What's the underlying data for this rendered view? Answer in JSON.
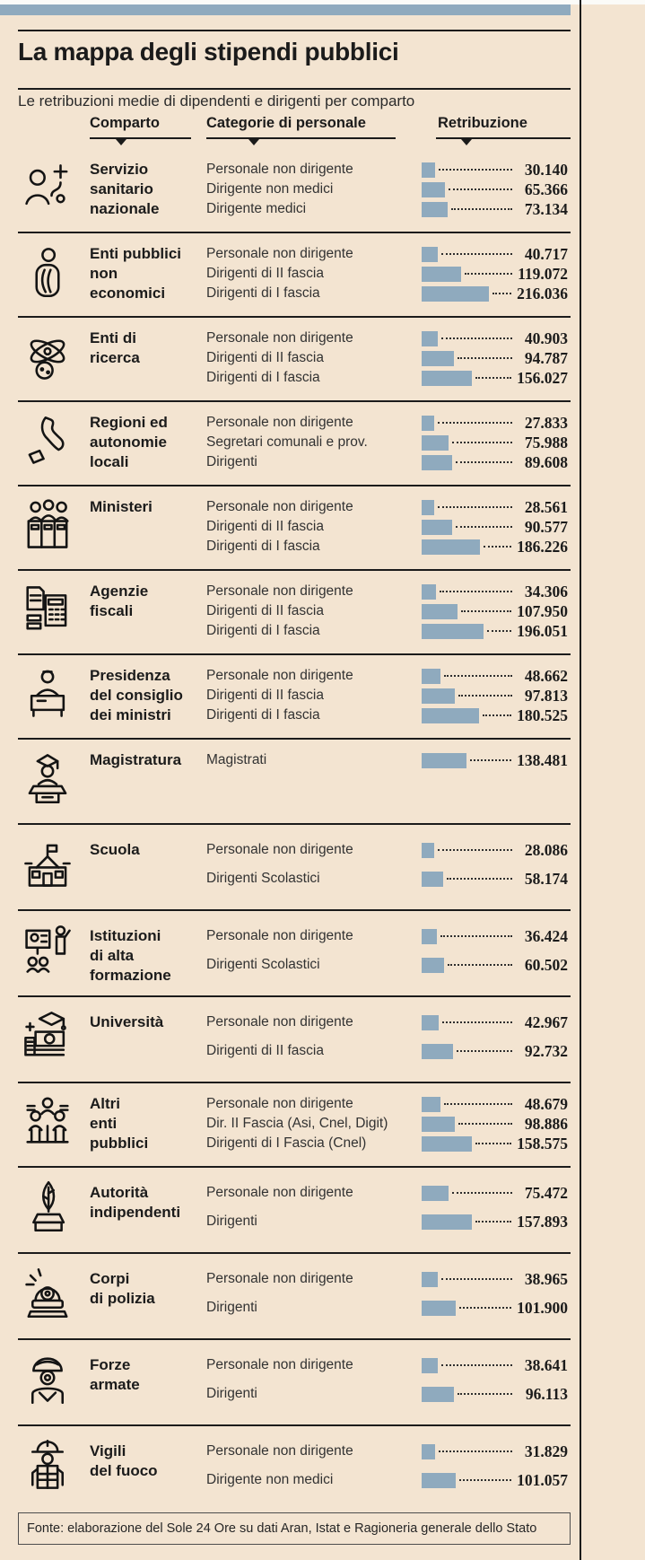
{
  "header": {
    "title": "La mappa degli stipendi pubblici",
    "subtitle": "Le retribuzioni medie di dipendenti e dirigenti per comparto"
  },
  "columns": {
    "comparto": "Comparto",
    "categorie": "Categorie di personale",
    "retribuzione": "Retribuzione"
  },
  "footer": {
    "source": "Fonte: elaborazione del Sole 24 Ore su dati Aran, Istat e Ragioneria generale dello Stato"
  },
  "colors": {
    "background": "#f3e4d1",
    "bar": "#8faabe",
    "top_accent": "#8faabe",
    "text": "#1b1b1b"
  },
  "chart_data": {
    "type": "bar",
    "title": "La mappa degli stipendi pubblici",
    "subtitle": "Le retribuzioni medie di dipendenti e dirigenti per comparto",
    "orientation": "horizontal",
    "xlim": [
      0,
      216036
    ],
    "value_note": "retribuzione media annua in euro, separatore migliaia con punto",
    "rows": [
      {
        "icon": "doctor-icon",
        "comparto": "Servizio sanitario nazionale",
        "comparto_lines": [
          "Servizio",
          "sanitario",
          "nazionale"
        ],
        "items": [
          {
            "label": "Personale non dirigente",
            "value": 30140,
            "display": "30.140"
          },
          {
            "label": "Dirigente non medici",
            "value": 65366,
            "display": "65.366"
          },
          {
            "label": "Dirigente medici",
            "value": 73134,
            "display": "73.134"
          }
        ]
      },
      {
        "icon": "person-robe-icon",
        "comparto": "Enti pubblici non economici",
        "comparto_lines": [
          "Enti pubblici",
          "non",
          "economici"
        ],
        "items": [
          {
            "label": "Personale non dirigente",
            "value": 40717,
            "display": "40.717"
          },
          {
            "label": "Dirigenti di II fascia",
            "value": 119072,
            "display": "119.072"
          },
          {
            "label": "Dirigenti di I fascia",
            "value": 216036,
            "display": "216.036"
          }
        ]
      },
      {
        "icon": "atom-icon",
        "comparto": "Enti di ricerca",
        "comparto_lines": [
          "Enti di",
          "ricerca"
        ],
        "items": [
          {
            "label": "Personale non dirigente",
            "value": 40903,
            "display": "40.903"
          },
          {
            "label": "Dirigenti di II fascia",
            "value": 94787,
            "display": "94.787"
          },
          {
            "label": "Dirigenti di I fascia",
            "value": 156027,
            "display": "156.027"
          }
        ]
      },
      {
        "icon": "italy-map-icon",
        "comparto": "Regioni ed autonomie locali",
        "comparto_lines": [
          "Regioni ed",
          "autonomie",
          "locali"
        ],
        "items": [
          {
            "label": "Personale non dirigente",
            "value": 27833,
            "display": "27.833"
          },
          {
            "label": "Segretari comunali e prov.",
            "value": 75988,
            "display": "75.988"
          },
          {
            "label": "Dirigenti",
            "value": 89608,
            "display": "89.608"
          }
        ]
      },
      {
        "icon": "ministers-icon",
        "comparto": "Ministeri",
        "comparto_lines": [
          "Ministeri"
        ],
        "items": [
          {
            "label": "Personale non dirigente",
            "value": 28561,
            "display": "28.561"
          },
          {
            "label": "Dirigenti di II fascia",
            "value": 90577,
            "display": "90.577"
          },
          {
            "label": "Dirigenti di I fascia",
            "value": 186226,
            "display": "186.226"
          }
        ]
      },
      {
        "icon": "documents-calculator-icon",
        "comparto": "Agenzie fiscali",
        "comparto_lines": [
          "Agenzie",
          "fiscali"
        ],
        "items": [
          {
            "label": "Personale non dirigente",
            "value": 34306,
            "display": "34.306"
          },
          {
            "label": "Dirigenti di II fascia",
            "value": 107950,
            "display": "107.950"
          },
          {
            "label": "Dirigenti di I fascia",
            "value": 196051,
            "display": "196.051"
          }
        ]
      },
      {
        "icon": "official-desk-icon",
        "comparto": "Presidenza del consiglio dei ministri",
        "comparto_lines": [
          "Presidenza",
          "del consiglio",
          "dei ministri"
        ],
        "items": [
          {
            "label": "Personale non dirigente",
            "value": 48662,
            "display": "48.662"
          },
          {
            "label": "Dirigenti di II fascia",
            "value": 97813,
            "display": "97.813"
          },
          {
            "label": "Dirigenti di I fascia",
            "value": 180525,
            "display": "180.525"
          }
        ]
      },
      {
        "icon": "judge-icon",
        "comparto": "Magistratura",
        "comparto_lines": [
          "Magistratura"
        ],
        "items": [
          {
            "label": "Magistrati",
            "value": 138481,
            "display": "138.481"
          }
        ]
      },
      {
        "icon": "school-icon",
        "comparto": "Scuola",
        "comparto_lines": [
          "Scuola"
        ],
        "items": [
          {
            "label": "Personale non dirigente",
            "value": 28086,
            "display": "28.086"
          },
          {
            "label": "Dirigenti Scolastici",
            "value": 58174,
            "display": "58.174"
          }
        ]
      },
      {
        "icon": "lecturer-icon",
        "comparto": "Istituzioni di alta formazione",
        "comparto_lines": [
          "Istituzioni",
          "di alta",
          "formazione"
        ],
        "items": [
          {
            "label": "Personale non dirigente",
            "value": 36424,
            "display": "36.424"
          },
          {
            "label": "Dirigenti Scolastici",
            "value": 60502,
            "display": "60.502"
          }
        ]
      },
      {
        "icon": "graduation-money-icon",
        "comparto": "Università",
        "comparto_lines": [
          "Università"
        ],
        "items": [
          {
            "label": "Personale non dirigente",
            "value": 42967,
            "display": "42.967"
          },
          {
            "label": "Dirigenti di II fascia",
            "value": 92732,
            "display": "92.732"
          }
        ]
      },
      {
        "icon": "people-group-icon",
        "comparto": "Altri enti pubblici",
        "comparto_lines": [
          "Altri",
          "enti",
          "pubblici"
        ],
        "items": [
          {
            "label": "Personale non dirigente",
            "value": 48679,
            "display": "48.679"
          },
          {
            "label": "Dir. II Fascia (Asi, Cnel, Digit)",
            "value": 98886,
            "display": "98.886"
          },
          {
            "label": "Dirigenti di I Fascia (Cnel)",
            "value": 158575,
            "display": "158.575"
          }
        ]
      },
      {
        "icon": "quill-inkwell-icon",
        "comparto": "Autorità indipendenti",
        "comparto_lines": [
          "Autorità",
          "indipendenti"
        ],
        "items": [
          {
            "label": "Personale non dirigente",
            "value": 75472,
            "display": "75.472"
          },
          {
            "label": "Dirigenti",
            "value": 157893,
            "display": "157.893"
          }
        ]
      },
      {
        "icon": "siren-icon",
        "comparto": "Corpi di polizia",
        "comparto_lines": [
          "Corpi",
          "di polizia"
        ],
        "items": [
          {
            "label": "Personale non dirigente",
            "value": 38965,
            "display": "38.965"
          },
          {
            "label": "Dirigenti",
            "value": 101900,
            "display": "101.900"
          }
        ]
      },
      {
        "icon": "soldier-icon",
        "comparto": "Forze armate",
        "comparto_lines": [
          "Forze",
          "armate"
        ],
        "items": [
          {
            "label": "Personale non dirigente",
            "value": 38641,
            "display": "38.641"
          },
          {
            "label": "Dirigenti",
            "value": 96113,
            "display": "96.113"
          }
        ]
      },
      {
        "icon": "firefighter-icon",
        "comparto": "Vigili del fuoco",
        "comparto_lines": [
          "Vigili",
          "del fuoco"
        ],
        "items": [
          {
            "label": "Personale non dirigente",
            "value": 31829,
            "display": "31.829"
          },
          {
            "label": "Dirigente non medici",
            "value": 101057,
            "display": "101.057"
          }
        ]
      }
    ]
  }
}
